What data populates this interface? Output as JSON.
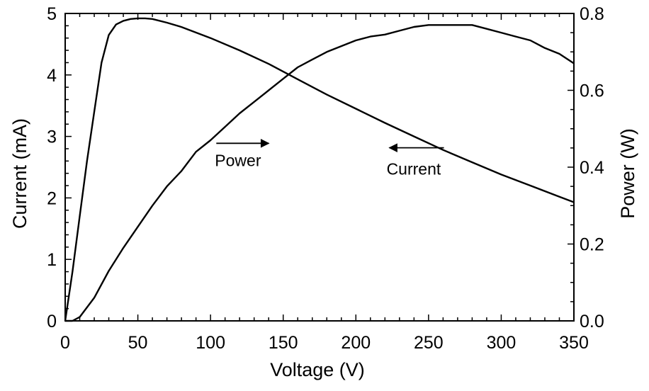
{
  "chart_data": {
    "type": "line",
    "title": "",
    "xlabel": "Voltage (V)",
    "ylabel_left": "Current (mA)",
    "ylabel_right": "Power (W)",
    "xlim": [
      0,
      350
    ],
    "ylim_left": [
      0,
      5
    ],
    "ylim_right": [
      0,
      0.8
    ],
    "x_ticks": [
      "0",
      "50",
      "100",
      "150",
      "200",
      "250",
      "300",
      "350"
    ],
    "y_left_ticks": [
      "0",
      "1",
      "2",
      "3",
      "4",
      "5"
    ],
    "y_right_ticks": [
      "0.0",
      "0.2",
      "0.4",
      "0.6",
      "0.8"
    ],
    "grid": false,
    "legend": "none",
    "series": [
      {
        "axis": "left",
        "color": "#000000",
        "x": [
          0,
          5,
          10,
          15,
          20,
          25,
          30,
          35,
          40,
          45,
          50,
          55,
          60,
          70,
          80,
          100,
          120,
          140,
          160,
          180,
          200,
          220,
          240,
          260,
          280,
          300,
          320,
          340,
          350
        ],
        "values": [
          0,
          0.8,
          1.7,
          2.6,
          3.4,
          4.2,
          4.65,
          4.82,
          4.88,
          4.91,
          4.92,
          4.92,
          4.91,
          4.85,
          4.78,
          4.6,
          4.4,
          4.18,
          3.93,
          3.68,
          3.45,
          3.22,
          3.0,
          2.78,
          2.58,
          2.38,
          2.2,
          2.02,
          1.93
        ]
      },
      {
        "axis": "right",
        "color": "#000000",
        "x": [
          0,
          5,
          10,
          20,
          30,
          40,
          50,
          60,
          70,
          80,
          90,
          100,
          110,
          120,
          130,
          140,
          150,
          160,
          170,
          180,
          190,
          200,
          210,
          220,
          230,
          240,
          250,
          260,
          270,
          280,
          290,
          300,
          310,
          320,
          330,
          340,
          350
        ],
        "values": [
          0,
          0,
          0.01,
          0.06,
          0.13,
          0.19,
          0.245,
          0.3,
          0.35,
          0.39,
          0.44,
          0.47,
          0.505,
          0.54,
          0.57,
          0.6,
          0.63,
          0.66,
          0.68,
          0.7,
          0.715,
          0.73,
          0.74,
          0.745,
          0.755,
          0.765,
          0.77,
          0.77,
          0.77,
          0.77,
          0.76,
          0.75,
          0.74,
          0.73,
          0.71,
          0.695,
          0.67
        ]
      }
    ],
    "annotations": [
      {
        "text": "Power",
        "arrow": "right",
        "x": 103,
        "y_left": 2.6
      },
      {
        "text": "Current",
        "arrow": "left",
        "x": 225,
        "y_left": 2.55
      }
    ]
  }
}
